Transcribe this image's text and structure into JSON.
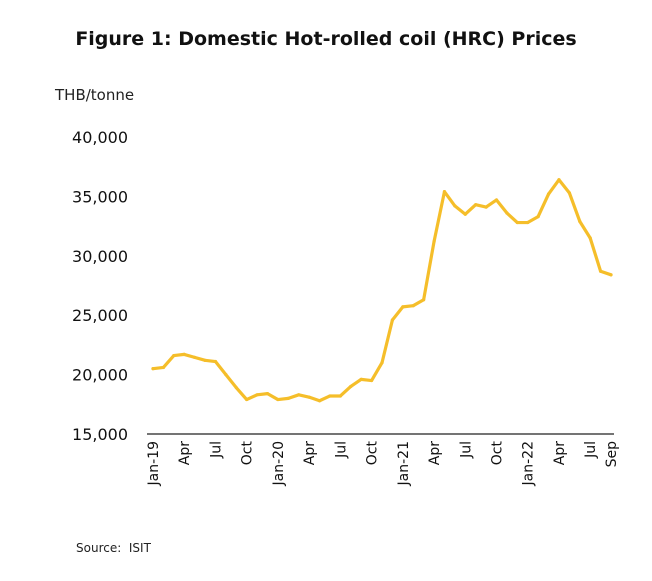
{
  "figure": {
    "title": "Figure 1: Domestic Hot-rolled coil (HRC) Prices",
    "unit_label": "THB/tonne",
    "source": "Source:  ISIT"
  },
  "chart_data": {
    "type": "line",
    "title": "Figure 1: Domestic Hot-rolled coil (HRC) Prices",
    "xlabel": "",
    "ylabel": "THB/tonne",
    "ylim": [
      15000,
      40000
    ],
    "yticks": [
      15000,
      20000,
      25000,
      30000,
      35000,
      40000
    ],
    "ytick_labels": [
      "15,000",
      "20,000",
      "25,000",
      "30,000",
      "35,000",
      "40,000"
    ],
    "x": [
      "Jan-19",
      "Feb-19",
      "Mar-19",
      "Apr-19",
      "May-19",
      "Jun-19",
      "Jul-19",
      "Aug-19",
      "Sep-19",
      "Oct-19",
      "Nov-19",
      "Dec-19",
      "Jan-20",
      "Feb-20",
      "Mar-20",
      "Apr-20",
      "May-20",
      "Jun-20",
      "Jul-20",
      "Aug-20",
      "Sep-20",
      "Oct-20",
      "Nov-20",
      "Dec-20",
      "Jan-21",
      "Feb-21",
      "Mar-21",
      "Apr-21",
      "May-21",
      "Jun-21",
      "Jul-21",
      "Aug-21",
      "Sep-21",
      "Oct-21",
      "Nov-21",
      "Dec-21",
      "Jan-22",
      "Feb-22",
      "Mar-22",
      "Apr-22",
      "May-22",
      "Jun-22",
      "Jul-22",
      "Aug-22",
      "Sep-22"
    ],
    "xtick_labels": [
      {
        "month": "Jan-19",
        "label": "Jan-19"
      },
      {
        "month": "Apr-19",
        "label": "Apr"
      },
      {
        "month": "Jul-19",
        "label": "Jul"
      },
      {
        "month": "Oct-19",
        "label": "Oct"
      },
      {
        "month": "Jan-20",
        "label": "Jan-20"
      },
      {
        "month": "Apr-20",
        "label": "Apr"
      },
      {
        "month": "Jul-20",
        "label": "Jul"
      },
      {
        "month": "Oct-20",
        "label": "Oct"
      },
      {
        "month": "Jan-21",
        "label": "Jan-21"
      },
      {
        "month": "Apr-21",
        "label": "Apr"
      },
      {
        "month": "Jul-21",
        "label": "Jul"
      },
      {
        "month": "Oct-21",
        "label": "Oct"
      },
      {
        "month": "Jan-22",
        "label": "Jan-22"
      },
      {
        "month": "Apr-22",
        "label": "Apr"
      },
      {
        "month": "Jul-22",
        "label": "Jul"
      },
      {
        "month": "Sep-22",
        "label": "Sep"
      }
    ],
    "series": [
      {
        "color": "#F5BE2A",
        "values": [
          20500,
          20600,
          21600,
          21700,
          21450,
          21200,
          21100,
          20000,
          18900,
          17900,
          18300,
          18400,
          17900,
          18000,
          18300,
          18100,
          17800,
          18200,
          18200,
          19000,
          19600,
          19500,
          21000,
          24600,
          25700,
          25800,
          26300,
          31200,
          35400,
          34200,
          33500,
          34300,
          34100,
          34700,
          33600,
          32800,
          32800,
          33300,
          35200,
          36400,
          35300,
          32900,
          31500,
          28700,
          28400
        ]
      }
    ],
    "grid": false,
    "legend": "none"
  }
}
